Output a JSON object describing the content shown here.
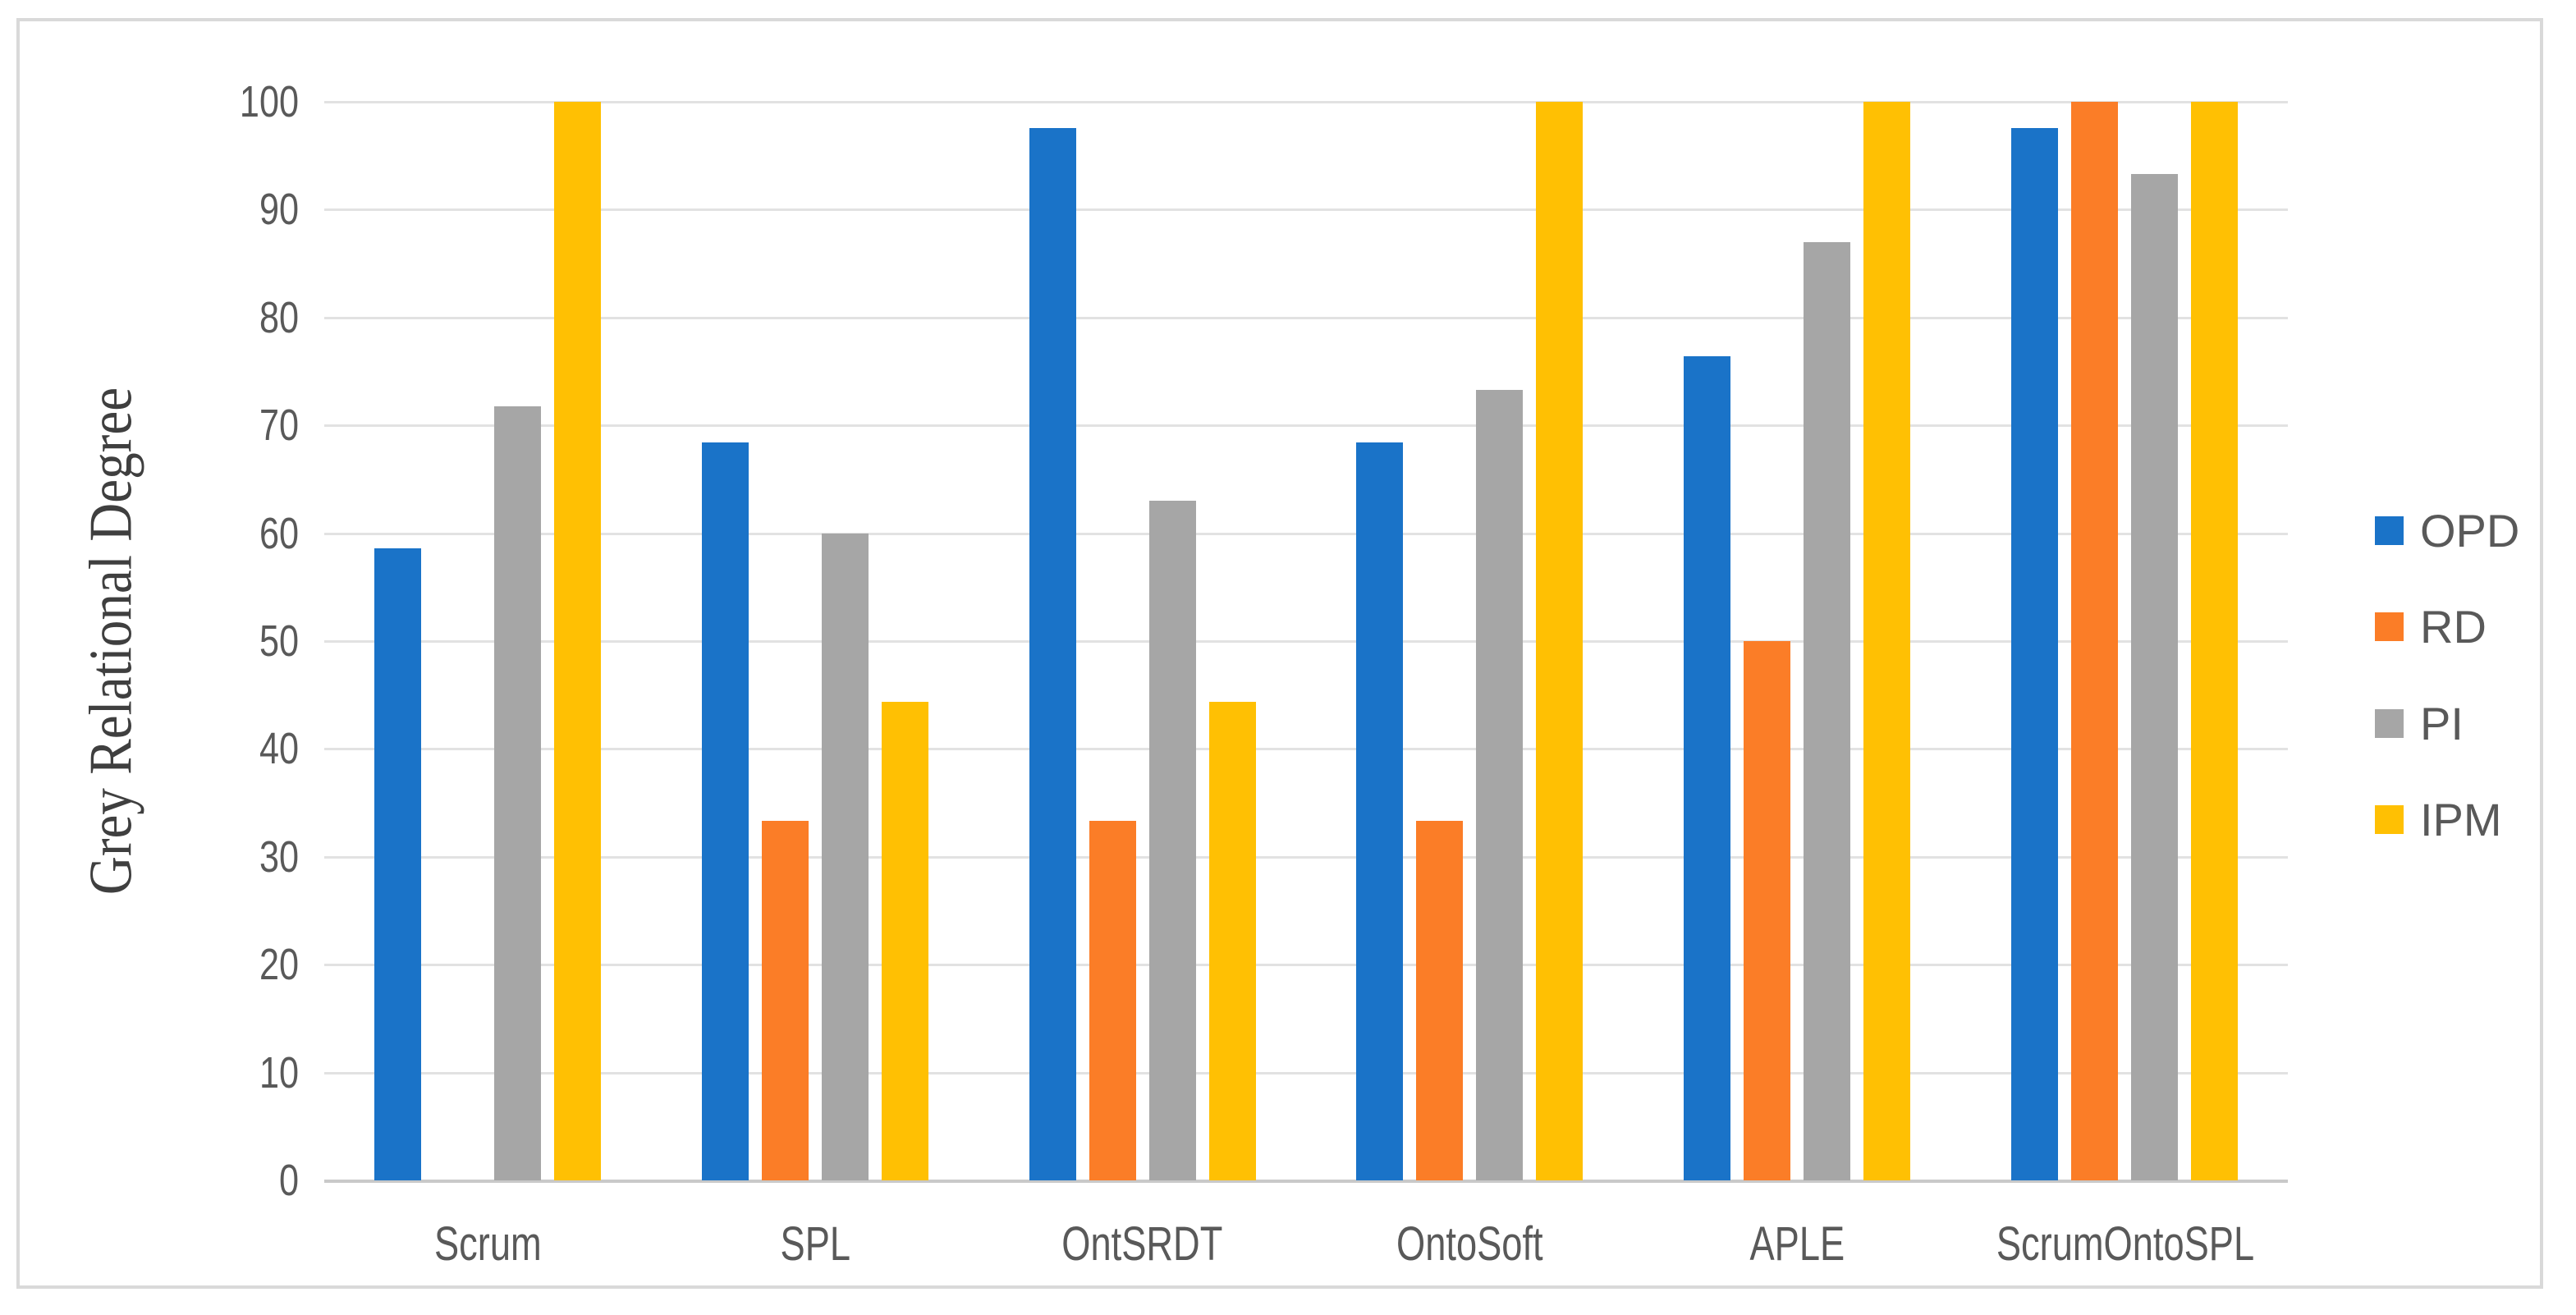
{
  "chart_data": {
    "type": "bar",
    "title": "",
    "xlabel": "",
    "ylabel": "Grey Relational Degree",
    "ylim": [
      0,
      100
    ],
    "yticks": [
      0,
      10,
      20,
      30,
      40,
      50,
      60,
      70,
      80,
      90,
      100
    ],
    "grid": "horizontal",
    "legend_position": "right",
    "categories": [
      "Scrum",
      "SPL",
      "OntSRDT",
      "OntoSoft",
      "APLE",
      "ScrumOntoSPL"
    ],
    "series": [
      {
        "name": "OPD",
        "color": "#1a73c8",
        "values": [
          58.6,
          68.4,
          97.6,
          68.4,
          76.4,
          97.6
        ]
      },
      {
        "name": "RD",
        "color": "#fb7d27",
        "values": [
          0,
          33.3,
          33.3,
          33.3,
          50,
          100
        ]
      },
      {
        "name": "PI",
        "color": "#a6a6a6",
        "values": [
          71.8,
          60,
          63,
          73.3,
          87,
          93.3
        ]
      },
      {
        "name": "IPM",
        "color": "#ffc003",
        "values": [
          100,
          44.4,
          44.4,
          100,
          100,
          100
        ]
      }
    ]
  },
  "style_colors": {
    "gridline": "#e2e2e2",
    "axis_line": "#c9c9c9",
    "frame_border": "#d9d9d9",
    "tick_text": "#595959",
    "axis_title_text": "#3f3f3f"
  }
}
